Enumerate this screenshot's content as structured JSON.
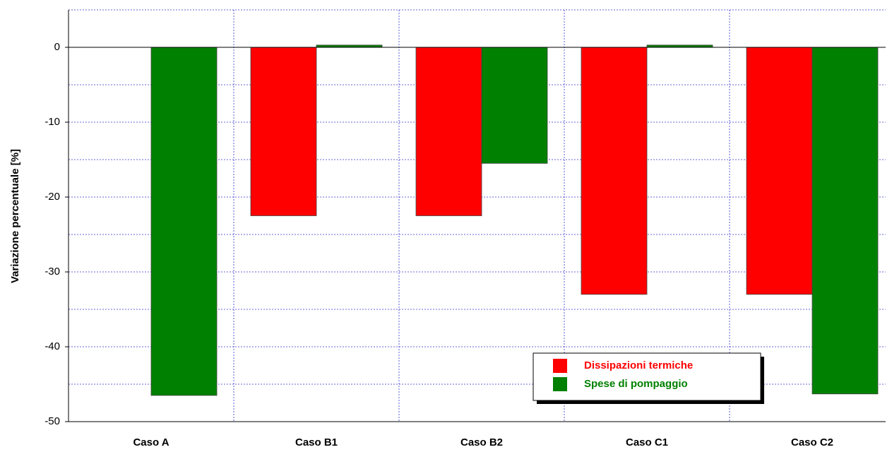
{
  "chart_data": {
    "type": "bar",
    "y_label": "Variazione percentuale [%]",
    "categories": [
      "Caso A",
      "Caso B1",
      "Caso B2",
      "Caso C1",
      "Caso C2"
    ],
    "series": [
      {
        "name": "Dissipazioni termiche",
        "color": "#ff0000",
        "values": [
          null,
          -22.5,
          -22.5,
          -33,
          -33
        ]
      },
      {
        "name": "Spese di pompaggio",
        "color": "#008000",
        "values": [
          -46.5,
          0.3,
          -15.5,
          0.3,
          -46.3
        ]
      }
    ],
    "ylim": [
      -50,
      5
    ],
    "yticks": [
      0,
      -10,
      -20,
      -30,
      -40,
      -50
    ],
    "minor_yticks": [
      5,
      -5,
      -15,
      -25,
      -35,
      -45
    ],
    "grid": true,
    "legend": "lower right"
  }
}
